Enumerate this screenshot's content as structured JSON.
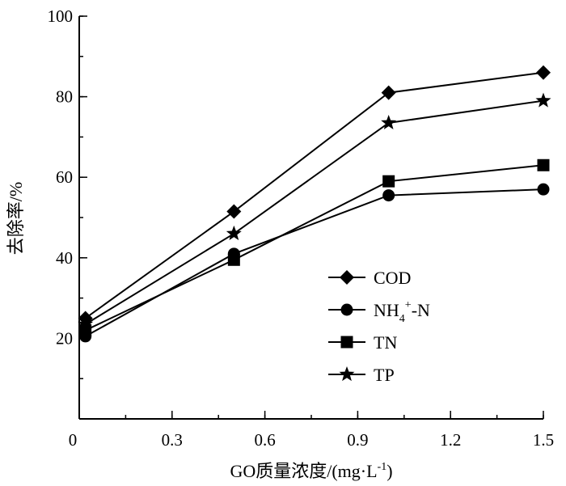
{
  "chart_data": {
    "type": "line",
    "xlabel_parts": [
      "GO质量浓度/(mg·L",
      "-1",
      ")"
    ],
    "ylabel": "去除率/%",
    "xlim": [
      0,
      1.5
    ],
    "ylim": [
      0,
      100
    ],
    "xticks": [
      0,
      0.3,
      0.6,
      0.9,
      1.2,
      1.5
    ],
    "xtick_labels": [
      "0",
      "0.3",
      "0.6",
      "0.9",
      "1.2",
      "1.5"
    ],
    "yticks": [
      20,
      40,
      60,
      80,
      100
    ],
    "ytick_labels": [
      "20",
      "40",
      "60",
      "80",
      "100"
    ],
    "grid": false,
    "legend_position": "bottom-right",
    "x": [
      0.02,
      0.5,
      1.0,
      1.5
    ],
    "series": [
      {
        "name": "COD",
        "marker": "diamond",
        "values": [
          25,
          51.5,
          81,
          86
        ]
      },
      {
        "name": "NH4+-N",
        "name_parts": [
          "NH",
          "4",
          "+",
          "-N"
        ],
        "marker": "circle",
        "values": [
          20.5,
          41,
          55.5,
          57
        ]
      },
      {
        "name": "TN",
        "marker": "square",
        "values": [
          22,
          39.5,
          59,
          63
        ]
      },
      {
        "name": "TP",
        "marker": "star",
        "values": [
          23.5,
          46,
          73.5,
          79
        ]
      }
    ],
    "colors": {
      "line": "#000000",
      "marker": "#000000"
    }
  }
}
